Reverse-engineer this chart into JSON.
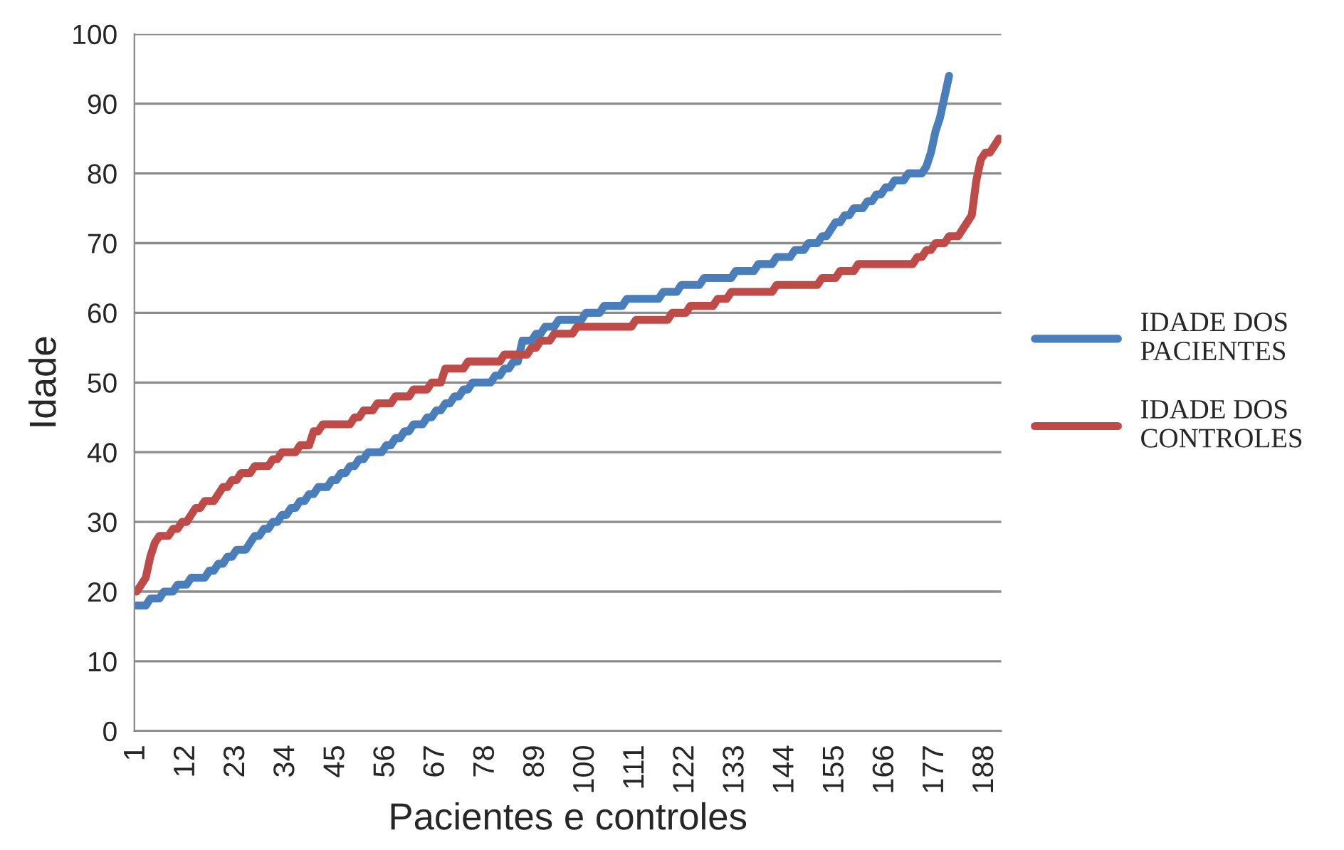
{
  "chart_data": {
    "type": "line",
    "xlabel": "Pacientes e controles",
    "ylabel": "Idade",
    "ylim": [
      0,
      100
    ],
    "yticks": [
      0,
      10,
      20,
      30,
      40,
      50,
      60,
      70,
      80,
      90,
      100
    ],
    "grid": "y",
    "legend": "right",
    "marker": "none",
    "line_style": "solid",
    "categories": [
      "1",
      null,
      null,
      null,
      null,
      null,
      null,
      null,
      null,
      null,
      null,
      "12",
      null,
      null,
      null,
      null,
      null,
      null,
      null,
      null,
      null,
      null,
      "23",
      null,
      null,
      null,
      null,
      null,
      null,
      null,
      null,
      null,
      null,
      "34",
      null,
      null,
      null,
      null,
      null,
      null,
      null,
      null,
      null,
      null,
      "45",
      null,
      null,
      null,
      null,
      null,
      null,
      null,
      null,
      null,
      null,
      "56",
      null,
      null,
      null,
      null,
      null,
      null,
      null,
      null,
      null,
      null,
      "67",
      null,
      null,
      null,
      null,
      null,
      null,
      null,
      null,
      null,
      null,
      "78",
      null,
      null,
      null,
      null,
      null,
      null,
      null,
      null,
      null,
      null,
      "89",
      null,
      null,
      null,
      null,
      null,
      null,
      null,
      null,
      null,
      null,
      "100",
      null,
      null,
      null,
      null,
      null,
      null,
      null,
      null,
      null,
      null,
      "111",
      null,
      null,
      null,
      null,
      null,
      null,
      null,
      null,
      null,
      null,
      "122",
      null,
      null,
      null,
      null,
      null,
      null,
      null,
      null,
      null,
      null,
      "133",
      null,
      null,
      null,
      null,
      null,
      null,
      null,
      null,
      null,
      null,
      "144",
      null,
      null,
      null,
      null,
      null,
      null,
      null,
      null,
      null,
      null,
      "155",
      null,
      null,
      null,
      null,
      null,
      null,
      null,
      null,
      null,
      null,
      "166",
      null,
      null,
      null,
      null,
      null,
      null,
      null,
      null,
      null,
      null,
      "177",
      null,
      null,
      null,
      null,
      null,
      null,
      null,
      null,
      null,
      null,
      "188",
      null,
      null,
      null
    ],
    "series": [
      {
        "name": "IDADE DOS\nPACIENTES",
        "color": "#4a7ebb",
        "values": [
          18,
          18,
          18,
          19,
          19,
          19,
          20,
          20,
          20,
          21,
          21,
          21,
          22,
          22,
          22,
          22,
          23,
          23,
          24,
          24,
          25,
          25,
          26,
          26,
          26,
          27,
          28,
          28,
          29,
          29,
          30,
          30,
          31,
          31,
          32,
          32,
          33,
          33,
          34,
          34,
          35,
          35,
          35,
          36,
          36,
          37,
          37,
          38,
          38,
          39,
          39,
          40,
          40,
          40,
          40,
          41,
          41,
          42,
          42,
          43,
          43,
          44,
          44,
          44,
          45,
          45,
          46,
          46,
          47,
          47,
          48,
          48,
          49,
          49,
          50,
          50,
          50,
          50,
          50,
          51,
          51,
          52,
          52,
          53,
          53,
          56,
          56,
          56,
          57,
          57,
          58,
          58,
          58,
          59,
          59,
          59,
          59,
          59,
          59,
          60,
          60,
          60,
          60,
          61,
          61,
          61,
          61,
          61,
          62,
          62,
          62,
          62,
          62,
          62,
          62,
          62,
          63,
          63,
          63,
          63,
          64,
          64,
          64,
          64,
          64,
          65,
          65,
          65,
          65,
          65,
          65,
          65,
          66,
          66,
          66,
          66,
          66,
          67,
          67,
          67,
          67,
          68,
          68,
          68,
          68,
          69,
          69,
          69,
          70,
          70,
          70,
          71,
          71,
          72,
          73,
          73,
          74,
          74,
          75,
          75,
          75,
          76,
          76,
          77,
          77,
          78,
          78,
          79,
          79,
          79,
          80,
          80,
          80,
          80,
          81,
          83,
          86,
          88,
          91,
          94,
          null,
          null,
          null,
          null,
          null,
          null,
          null,
          null,
          null,
          null,
          null
        ]
      },
      {
        "name": "IDADE DOS\nCONTROLES",
        "color": "#be4b48",
        "values": [
          20,
          21,
          22,
          25,
          27,
          28,
          28,
          28,
          29,
          29,
          30,
          30,
          31,
          32,
          32,
          33,
          33,
          33,
          34,
          35,
          35,
          36,
          36,
          37,
          37,
          37,
          38,
          38,
          38,
          38,
          39,
          39,
          40,
          40,
          40,
          40,
          41,
          41,
          41,
          43,
          43,
          44,
          44,
          44,
          44,
          44,
          44,
          44,
          45,
          45,
          46,
          46,
          46,
          47,
          47,
          47,
          47,
          48,
          48,
          48,
          48,
          49,
          49,
          49,
          49,
          50,
          50,
          50,
          52,
          52,
          52,
          52,
          52,
          53,
          53,
          53,
          53,
          53,
          53,
          53,
          53,
          54,
          54,
          54,
          54,
          54,
          54,
          55,
          55,
          56,
          56,
          56,
          57,
          57,
          57,
          57,
          57,
          58,
          58,
          58,
          58,
          58,
          58,
          58,
          58,
          58,
          58,
          58,
          58,
          58,
          59,
          59,
          59,
          59,
          59,
          59,
          59,
          59,
          60,
          60,
          60,
          60,
          61,
          61,
          61,
          61,
          61,
          61,
          62,
          62,
          62,
          63,
          63,
          63,
          63,
          63,
          63,
          63,
          63,
          63,
          63,
          64,
          64,
          64,
          64,
          64,
          64,
          64,
          64,
          64,
          64,
          65,
          65,
          65,
          65,
          66,
          66,
          66,
          66,
          67,
          67,
          67,
          67,
          67,
          67,
          67,
          67,
          67,
          67,
          67,
          67,
          67,
          68,
          68,
          69,
          69,
          70,
          70,
          70,
          71,
          71,
          71,
          72,
          73,
          74,
          79,
          82,
          83,
          83,
          84,
          85
        ]
      }
    ]
  }
}
